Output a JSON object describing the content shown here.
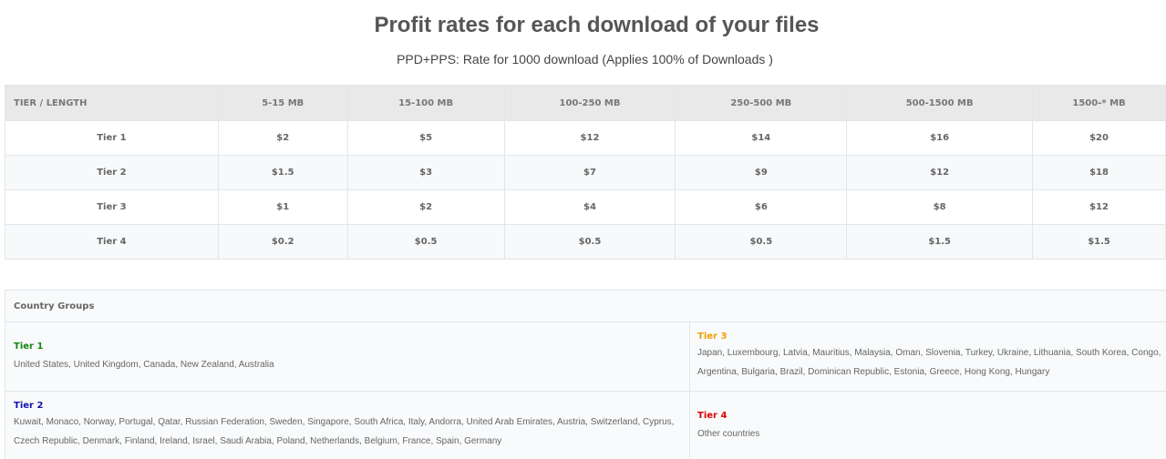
{
  "header": {
    "title": "Profit rates for each download of your files",
    "subtitle": "PPD+PPS: Rate for 1000 download (Applies 100% of Downloads   )"
  },
  "rates_table": {
    "columns": [
      "TIER / LENGTH",
      "5-15 MB",
      "15-100 MB",
      "100-250 MB",
      "250-500 MB",
      "500-1500 MB",
      "1500-* MB"
    ],
    "rows": [
      {
        "tier": "Tier 1",
        "values": [
          "$2",
          "$5",
          "$12",
          "$14",
          "$16",
          "$20"
        ]
      },
      {
        "tier": "Tier 2",
        "values": [
          "$1.5",
          "$3",
          "$7",
          "$9",
          "$12",
          "$18"
        ]
      },
      {
        "tier": "Tier 3",
        "values": [
          "$1",
          "$2",
          "$4",
          "$6",
          "$8",
          "$12"
        ]
      },
      {
        "tier": "Tier 4",
        "values": [
          "$0.2",
          "$0.5",
          "$0.5",
          "$0.5",
          "$1.5",
          "$1.5"
        ]
      }
    ]
  },
  "country_groups": {
    "heading": "Country Groups",
    "tier1": {
      "label": "Tier 1",
      "countries": "United States, United Kingdom, Canada, New Zealand, Australia"
    },
    "tier2": {
      "label": "Tier 2",
      "countries": "Kuwait, Monaco, Norway, Portugal, Qatar, Russian Federation, Sweden, Singapore, South Africa, Italy, Andorra, United Arab Emirates, Austria, Switzerland, Cyprus, Czech Republic, Denmark, Finland, Ireland, Israel, Saudi Arabia, Poland, Netherlands, Belgium, France, Spain, Germany"
    },
    "tier3": {
      "label": "Tier 3",
      "countries": "Japan, Luxembourg, Latvia, Mauritius, Malaysia, Oman, Slovenia, Turkey, Ukraine, Lithuania, South Korea, Congo, Argentina, Bulgaria, Brazil, Dominican Republic, Estonia, Greece, Hong Kong, Hungary"
    },
    "tier4": {
      "label": "Tier 4",
      "countries": "Other countries"
    }
  },
  "colors": {
    "tier1": "#118811",
    "tier2": "#1111aa",
    "tier3": "#f0a000",
    "tier4": "#dd0000"
  }
}
